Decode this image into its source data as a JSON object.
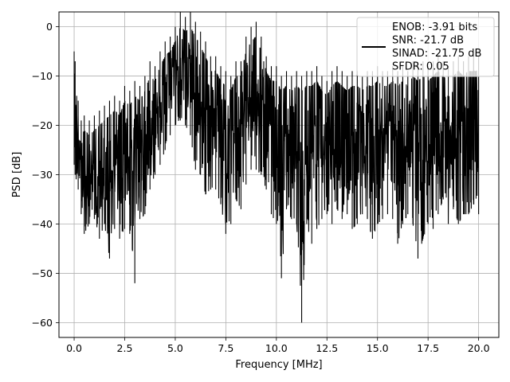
{
  "chart_data": {
    "type": "line",
    "xlabel": "Frequency [MHz]",
    "ylabel": "PSD [dB]",
    "xlim": [
      -0.75,
      21.0
    ],
    "ylim": [
      -63,
      3
    ],
    "xticks": [
      0.0,
      2.5,
      5.0,
      7.5,
      10.0,
      12.5,
      15.0,
      17.5,
      20.0
    ],
    "xtick_labels": [
      "0.0",
      "2.5",
      "5.0",
      "7.5",
      "10.0",
      "12.5",
      "15.0",
      "17.5",
      "20.0"
    ],
    "yticks": [
      0,
      -10,
      -20,
      -30,
      -40,
      -50,
      -60
    ],
    "ytick_labels": [
      "0",
      "−10",
      "−20",
      "−30",
      "−40",
      "−50",
      "−60"
    ],
    "grid": true,
    "legend_position": "top-right",
    "legend_entries": [
      "ENOB: -3.91 bits",
      "SNR: -21.7 dB",
      "SINAD: -21.75 dB",
      "SFDR: 0.05"
    ],
    "colors": {
      "line": "#000000",
      "grid": "#b0b0b0",
      "frame": "#000000"
    },
    "series": [
      {
        "x_start": 0.0,
        "x_end": 20.0,
        "envelope": [
          [
            0.0,
            -8,
            -28
          ],
          [
            0.05,
            -10,
            -30
          ],
          [
            0.2,
            -18,
            -33
          ],
          [
            0.35,
            -22,
            -38
          ],
          [
            0.5,
            -21,
            -42
          ],
          [
            0.75,
            -22,
            -40
          ],
          [
            1.0,
            -21,
            -39
          ],
          [
            1.25,
            -20,
            -43
          ],
          [
            1.5,
            -19,
            -40
          ],
          [
            1.75,
            -18,
            -47
          ],
          [
            2.0,
            -17,
            -41
          ],
          [
            2.25,
            -18,
            -43
          ],
          [
            2.5,
            -15,
            -41
          ],
          [
            2.75,
            -16,
            -42
          ],
          [
            3.0,
            -14,
            -52
          ],
          [
            3.25,
            -15,
            -39
          ],
          [
            3.5,
            -13,
            -38
          ],
          [
            3.75,
            -10,
            -33
          ],
          [
            4.0,
            -11,
            -30
          ],
          [
            4.25,
            -8,
            -28
          ],
          [
            4.5,
            -6,
            -25
          ],
          [
            4.75,
            -5,
            -22
          ],
          [
            5.0,
            -3,
            -20
          ],
          [
            5.25,
            0,
            -19
          ],
          [
            5.5,
            -1,
            -20
          ],
          [
            5.75,
            0,
            -22
          ],
          [
            6.0,
            -2,
            -29
          ],
          [
            6.25,
            -4,
            -30
          ],
          [
            6.5,
            -6,
            -34
          ],
          [
            6.75,
            -9,
            -33
          ],
          [
            7.0,
            -9,
            -33
          ],
          [
            7.25,
            -11,
            -36
          ],
          [
            7.5,
            -12,
            -42
          ],
          [
            7.75,
            -13,
            -40
          ],
          [
            8.0,
            -10,
            -35
          ],
          [
            8.25,
            -10,
            -37
          ],
          [
            8.5,
            -5,
            -32
          ],
          [
            8.75,
            -3,
            -29
          ],
          [
            9.0,
            -2,
            -29
          ],
          [
            9.25,
            -5,
            -30
          ],
          [
            9.5,
            -9,
            -33
          ],
          [
            9.75,
            -11,
            -38
          ],
          [
            10.0,
            -11,
            -40
          ],
          [
            10.25,
            -13,
            -51
          ],
          [
            10.5,
            -12,
            -37
          ],
          [
            10.75,
            -13,
            -39
          ],
          [
            11.0,
            -12,
            -40
          ],
          [
            11.25,
            -13,
            -60
          ],
          [
            11.5,
            -12,
            -40
          ],
          [
            11.75,
            -12,
            -44
          ],
          [
            12.0,
            -11,
            -41
          ],
          [
            12.25,
            -13,
            -39
          ],
          [
            12.5,
            -14,
            -38
          ],
          [
            12.75,
            -12,
            -40
          ],
          [
            13.0,
            -11,
            -37
          ],
          [
            13.25,
            -12,
            -39
          ],
          [
            13.5,
            -13,
            -38
          ],
          [
            13.75,
            -12,
            -41
          ],
          [
            14.0,
            -12,
            -40
          ],
          [
            14.25,
            -13,
            -38
          ],
          [
            14.5,
            -12,
            -39
          ],
          [
            14.75,
            -12,
            -43
          ],
          [
            15.0,
            -11,
            -40
          ],
          [
            15.25,
            -12,
            -39
          ],
          [
            15.5,
            -12,
            -38
          ],
          [
            15.75,
            -11,
            -39
          ],
          [
            16.0,
            -12,
            -44
          ],
          [
            16.25,
            -11,
            -40
          ],
          [
            16.5,
            -12,
            -38
          ],
          [
            16.75,
            -10,
            -40
          ],
          [
            17.0,
            -11,
            -47
          ],
          [
            17.25,
            -10,
            -43
          ],
          [
            17.5,
            -11,
            -40
          ],
          [
            17.75,
            -10,
            -41
          ],
          [
            18.0,
            -9,
            -38
          ],
          [
            18.25,
            -10,
            -35
          ],
          [
            18.5,
            -11,
            -40
          ],
          [
            18.75,
            -10,
            -37
          ],
          [
            19.0,
            -9,
            -40
          ],
          [
            19.25,
            -10,
            -38
          ],
          [
            19.5,
            -9,
            -38
          ],
          [
            19.75,
            -9,
            -36
          ],
          [
            20.0,
            -9,
            -38
          ]
        ]
      }
    ]
  }
}
